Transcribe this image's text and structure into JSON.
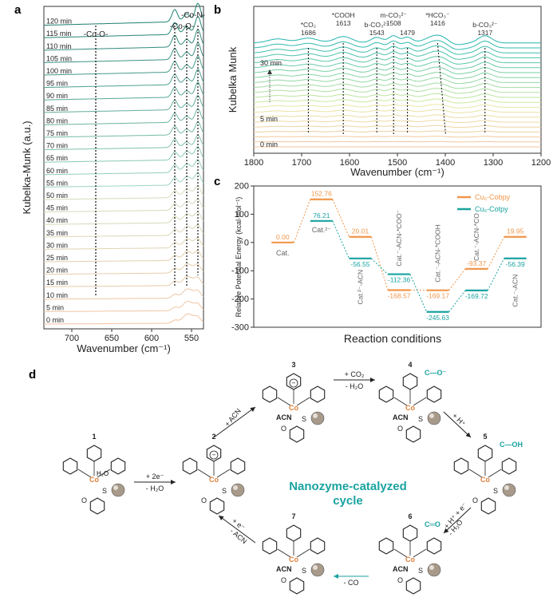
{
  "panels": {
    "a": "a",
    "b": "b",
    "c": "c",
    "d": "d"
  },
  "chart_data": [
    {
      "id": "a",
      "type": "line",
      "xlabel": "Wavenumber (cm⁻¹)",
      "ylabel": "Kubelka-Munk (a.u.)",
      "xlim": [
        735,
        535
      ],
      "x_ticks": [
        700,
        650,
        600,
        550
      ],
      "series_labels": [
        "0 min",
        "5 min",
        "10 min",
        "15 min",
        "20 min",
        "25 min",
        "30 min",
        "35 min",
        "40 min",
        "45 min",
        "50 min",
        "55 min",
        "60 min",
        "65 min",
        "70 min",
        "75 min",
        "80 min",
        "85 min",
        "90 min",
        "95 min",
        "100 min",
        "105 min",
        "110 min",
        "115 min",
        "120 min"
      ],
      "annotations": [
        "-Co-O-",
        "-Co-N-",
        "-Co-O-"
      ],
      "peak_positions": [
        670,
        571,
        556,
        542
      ],
      "grid": false
    },
    {
      "id": "b",
      "type": "line",
      "xlabel": "Wavenumber (cm⁻¹)",
      "ylabel": "Kubelka Munk",
      "xlim": [
        1800,
        1200
      ],
      "x_ticks": [
        1800,
        1700,
        1600,
        1500,
        1400,
        1300,
        1200
      ],
      "series_labels": [
        "0 min",
        "5 min",
        "30 min"
      ],
      "band_labels": [
        {
          "name": "*CO₂",
          "x": 1686
        },
        {
          "name": "*COOH",
          "x": 1613
        },
        {
          "name": "b-CO₃²⁻",
          "x": 1543
        },
        {
          "name": "m-CO₃²⁻",
          "x": 1508
        },
        {
          "name": "",
          "x": 1479
        },
        {
          "name": "*HCO₃⁻",
          "x": 1416
        },
        {
          "name": "b-CO₃²⁻",
          "x": 1317
        }
      ],
      "grid": false
    },
    {
      "id": "c",
      "type": "line",
      "xlabel": "Reaction conditions",
      "ylabel": "Relative Potential Energy (kcal·mol⁻¹)",
      "ylim": [
        -300,
        200
      ],
      "y_ticks": [
        200,
        100,
        0,
        -100,
        -200,
        -300
      ],
      "legend_position": "top-right",
      "series": [
        {
          "name": "Cu₆-Cobpy",
          "color": "#f0964a",
          "values": [
            0.0,
            152.76,
            20.01,
            -168.57,
            -169.17,
            -93.37,
            19.95
          ],
          "labels": [
            "0.00",
            "152.76",
            "20.01",
            "-168.57",
            "-169.17",
            "-93.37",
            "19.95"
          ]
        },
        {
          "name": "Cu₆-Cotpy",
          "color": "#1aa3a0",
          "values": [
            0.0,
            76.21,
            -56.55,
            -112.36,
            -245.63,
            -169.72,
            -56.39
          ],
          "labels": [
            "",
            "76.21",
            "-56.55",
            "-112.36",
            "-245.63",
            "-169.72",
            "-56.39"
          ]
        }
      ],
      "state_labels": [
        "Cat.",
        "Cat.²⁻",
        "Cat.²⁻-ACN",
        "Cat.⁻-ACN-*COO⁻",
        "Cat.⁻-ACN-*COOH",
        "Cat.⁻-ACN-*CO",
        "Cat.⁻-ACN"
      ],
      "grid": false
    }
  ],
  "cycle": {
    "center_label": "Nanozyme-catalyzed cycle",
    "numbers": [
      "1",
      "2",
      "3",
      "4",
      "5",
      "6",
      "7"
    ],
    "arrows": [
      {
        "from": "1",
        "to": "2",
        "above": "+ 2e⁻",
        "below": "- H₂O"
      },
      {
        "from": "2",
        "to": "3",
        "above": "+ ACN",
        "below": ""
      },
      {
        "from": "3",
        "to": "4",
        "above": "+ CO₂",
        "below": "- H₂O"
      },
      {
        "from": "4",
        "to": "5",
        "above": "+ H⁺",
        "below": ""
      },
      {
        "from": "5",
        "to": "6",
        "above": "+ H⁺ + e⁻",
        "below": "- H₂O"
      },
      {
        "from": "6",
        "to": "7",
        "above": "",
        "below": "- CO"
      },
      {
        "from": "7",
        "to": "2",
        "above": "+ e⁻",
        "below": "- ACN"
      }
    ],
    "fragment_labels": {
      "co": "Co",
      "acn": "ACN",
      "s": "S",
      "n": "N",
      "o": "O",
      "cooh": "C—OH",
      "coo": "C—O⁻",
      "co_double": "C═O",
      "h2o": "H₂O"
    }
  }
}
